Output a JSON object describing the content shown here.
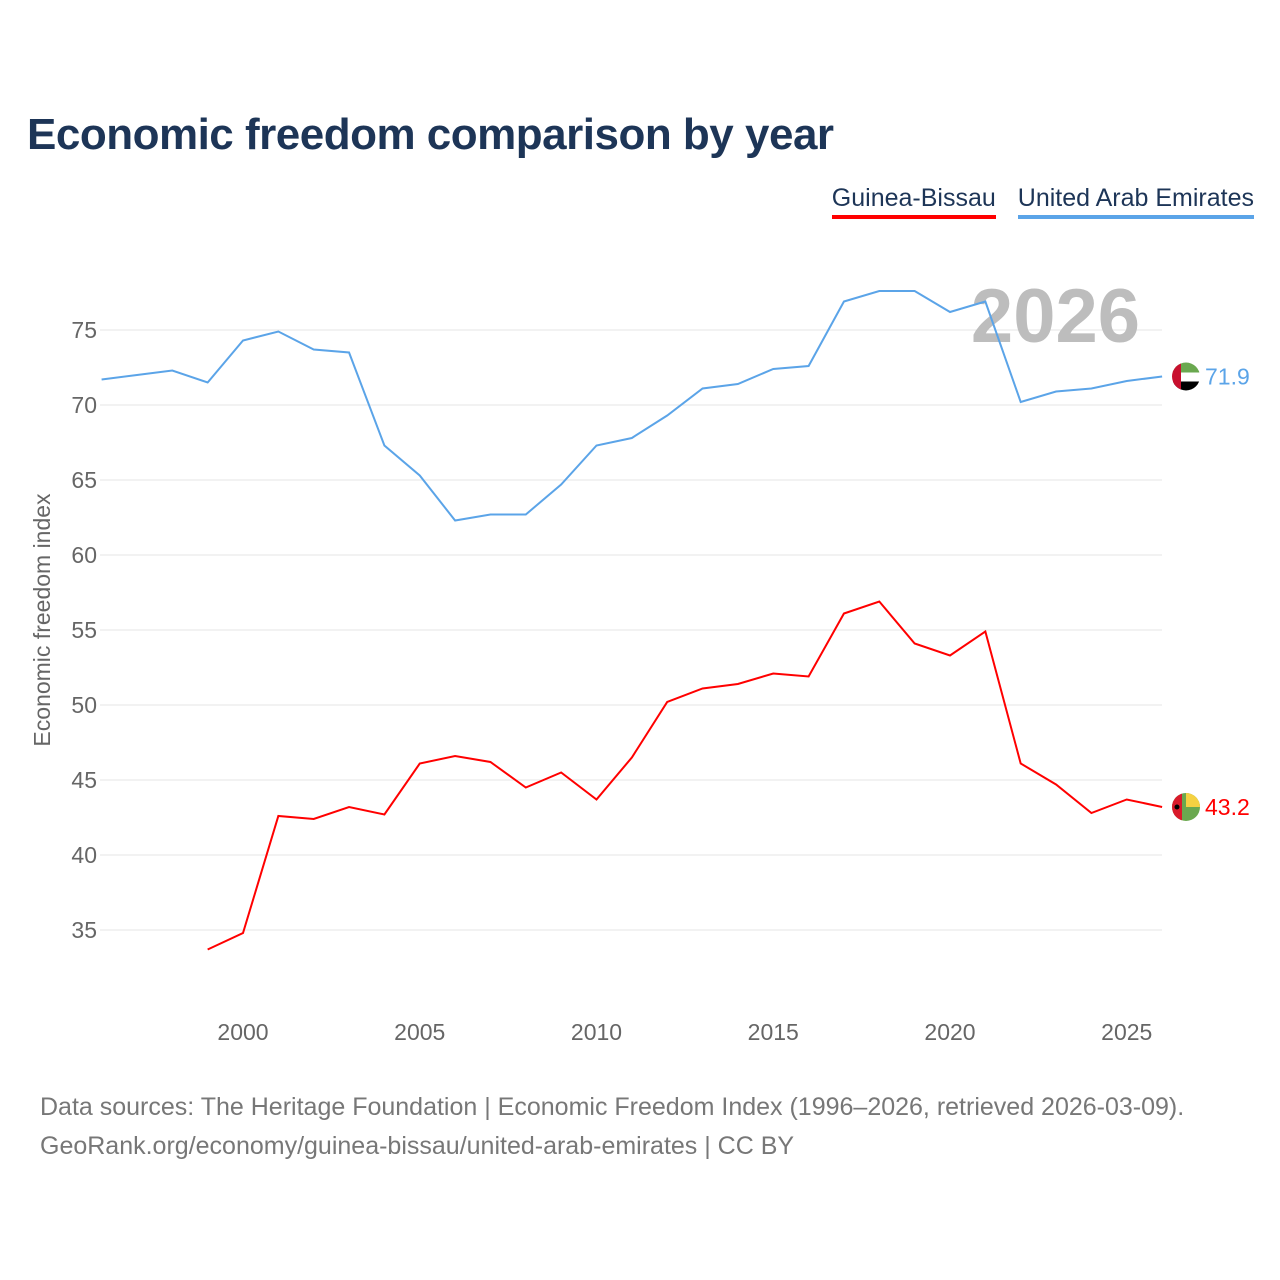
{
  "title": "Economic freedom comparison by year",
  "footer": {
    "line1": "Data sources: The Heritage Foundation | Economic Freedom Index (1996–2026, retrieved 2026-03-09).",
    "line2": "GeoRank.org/economy/guinea-bissau/united-arab-emirates | CC BY"
  },
  "chart_data": {
    "type": "line",
    "title": "Economic freedom comparison by year",
    "ylabel": "Economic freedom index",
    "xlabel": "",
    "year_label": "2026",
    "xlim": [
      1996,
      2026
    ],
    "ylim": [
      30,
      80
    ],
    "xticks": [
      2000,
      2005,
      2010,
      2015,
      2020,
      2025
    ],
    "yticks": [
      35,
      40,
      45,
      50,
      55,
      60,
      65,
      70,
      75
    ],
    "grid": true,
    "legend": "top-right",
    "series": [
      {
        "name": "Guinea-Bissau",
        "color": "#ff0000",
        "end_label": "43.2",
        "flag": "guinea-bissau-flag",
        "x": [
          1999,
          2000,
          2001,
          2002,
          2003,
          2004,
          2005,
          2006,
          2007,
          2008,
          2009,
          2010,
          2011,
          2012,
          2013,
          2014,
          2015,
          2016,
          2017,
          2018,
          2019,
          2020,
          2021,
          2022,
          2023,
          2024,
          2025,
          2026
        ],
        "values": [
          33.7,
          34.8,
          42.6,
          42.4,
          43.2,
          42.7,
          46.1,
          46.6,
          46.2,
          44.5,
          45.5,
          43.7,
          46.5,
          50.2,
          51.1,
          51.4,
          52.1,
          51.9,
          56.1,
          56.9,
          54.1,
          53.3,
          54.9,
          46.1,
          44.7,
          42.8,
          43.7,
          43.2
        ]
      },
      {
        "name": "United Arab Emirates",
        "color": "#5ba4e8",
        "end_label": "71.9",
        "flag": "uae-flag",
        "x": [
          1996,
          1997,
          1998,
          1999,
          2000,
          2001,
          2002,
          2003,
          2004,
          2005,
          2006,
          2007,
          2008,
          2009,
          2010,
          2011,
          2012,
          2013,
          2014,
          2015,
          2016,
          2017,
          2018,
          2019,
          2020,
          2021,
          2022,
          2023,
          2024,
          2025,
          2026
        ],
        "values": [
          71.7,
          72.0,
          72.3,
          71.5,
          74.3,
          74.9,
          73.7,
          73.5,
          67.3,
          65.3,
          62.3,
          62.7,
          62.7,
          64.7,
          67.3,
          67.8,
          69.3,
          71.1,
          71.4,
          72.4,
          72.6,
          76.9,
          77.6,
          77.6,
          76.2,
          76.9,
          70.2,
          70.9,
          71.1,
          71.6,
          71.9
        ]
      }
    ]
  }
}
